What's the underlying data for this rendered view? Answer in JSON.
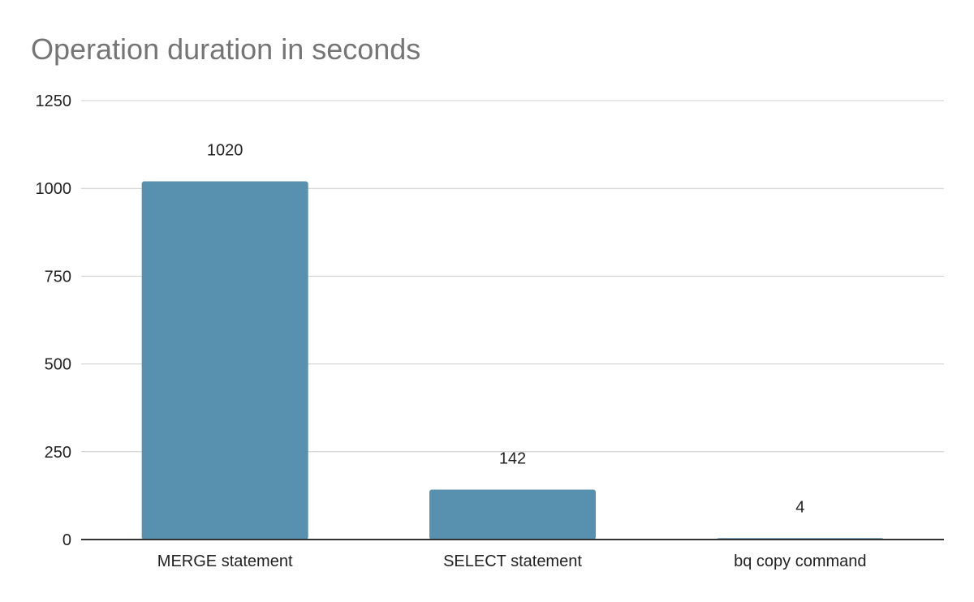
{
  "chart_data": {
    "type": "bar",
    "title": "Operation duration in seconds",
    "xlabel": "",
    "ylabel": "",
    "categories": [
      "MERGE statement",
      "SELECT statement",
      "bq copy command"
    ],
    "values": [
      1020,
      142,
      4
    ],
    "data_labels": [
      "1020",
      "142",
      "4"
    ],
    "ylim": [
      0,
      1250
    ],
    "yticks": [
      0,
      250,
      500,
      750,
      1000,
      1250
    ],
    "grid": true,
    "legend": "none",
    "colors": {
      "bar": "#5891b0",
      "grid": "#cccccc",
      "axis": "#333333",
      "title": "#757575",
      "text": "#222222"
    }
  }
}
